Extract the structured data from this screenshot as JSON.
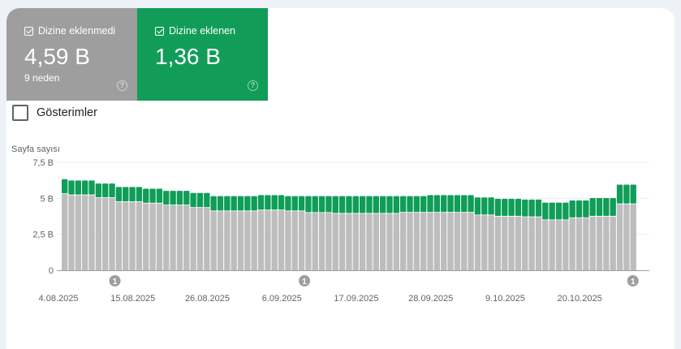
{
  "tiles": [
    {
      "label": "Dizine eklenmedi",
      "value": "4,59 B",
      "sub": "9 neden",
      "help": "?"
    },
    {
      "label": "Dizine eklenen",
      "value": "1,36 B",
      "help": "?"
    }
  ],
  "impressions_label": "Gösterimler",
  "colors": {
    "not_indexed": "#bdbdbd",
    "indexed": "#0f9d58",
    "tile_grey": "#9e9e9e",
    "tile_green": "#119d58"
  },
  "chart_data": {
    "type": "bar",
    "stacked": true,
    "ylabel": "Sayfa sayısı",
    "ylim": [
      0,
      7.5
    ],
    "y_ticks": [
      {
        "value": 0,
        "label": "0"
      },
      {
        "value": 2.5,
        "label": "2,5 B"
      },
      {
        "value": 5,
        "label": "5 B"
      },
      {
        "value": 7.5,
        "label": "7,5 B"
      }
    ],
    "x_tick_labels": [
      {
        "index": 0,
        "label": "4.08.2025"
      },
      {
        "index": 11,
        "label": "15.08.2025"
      },
      {
        "index": 22,
        "label": "26.08.2025"
      },
      {
        "index": 33,
        "label": "6.09.2025"
      },
      {
        "index": 44,
        "label": "17.09.2025"
      },
      {
        "index": 55,
        "label": "28.09.2025"
      },
      {
        "index": 66,
        "label": "9.10.2025"
      },
      {
        "index": 77,
        "label": "20.10.2025"
      }
    ],
    "annotations": [
      {
        "index": 7,
        "label": "1"
      },
      {
        "index": 35,
        "label": "1"
      },
      {
        "index": 84,
        "label": "1"
      }
    ],
    "series": [
      {
        "name": "Dizine eklenmedi",
        "values": [
          5.3,
          5.21,
          5.21,
          5.21,
          5.21,
          5.02,
          5.02,
          5.02,
          4.74,
          4.74,
          4.74,
          4.74,
          4.64,
          4.64,
          4.64,
          4.51,
          4.51,
          4.51,
          4.51,
          4.34,
          4.34,
          4.34,
          4.1,
          4.1,
          4.1,
          4.1,
          4.1,
          4.1,
          4.1,
          4.16,
          4.16,
          4.16,
          4.16,
          4.1,
          4.1,
          4.1,
          3.99,
          3.99,
          3.99,
          3.99,
          3.93,
          3.93,
          3.93,
          3.93,
          3.93,
          3.93,
          3.93,
          3.93,
          3.93,
          3.93,
          4.0,
          4.0,
          4.0,
          4.0,
          4.0,
          4.0,
          4.0,
          4.0,
          4.0,
          4.0,
          4.0,
          3.82,
          3.82,
          3.82,
          3.73,
          3.73,
          3.73,
          3.73,
          3.69,
          3.69,
          3.69,
          3.48,
          3.48,
          3.48,
          3.48,
          3.63,
          3.63,
          3.63,
          3.73,
          3.73,
          3.73,
          3.73,
          4.59,
          4.59,
          4.59
        ]
      },
      {
        "name": "Dizine eklenen",
        "values": [
          1.03,
          1.03,
          1.03,
          1.03,
          1.03,
          1.01,
          1.01,
          1.01,
          1.05,
          1.05,
          1.05,
          1.05,
          1.03,
          1.03,
          1.03,
          1.01,
          1.01,
          1.01,
          1.01,
          1.03,
          1.03,
          1.03,
          1.05,
          1.05,
          1.05,
          1.05,
          1.05,
          1.05,
          1.05,
          1.06,
          1.06,
          1.06,
          1.06,
          1.05,
          1.05,
          1.05,
          1.16,
          1.16,
          1.16,
          1.16,
          1.22,
          1.22,
          1.22,
          1.22,
          1.22,
          1.22,
          1.22,
          1.22,
          1.22,
          1.22,
          1.15,
          1.15,
          1.15,
          1.15,
          1.22,
          1.22,
          1.22,
          1.22,
          1.22,
          1.22,
          1.22,
          1.24,
          1.24,
          1.24,
          1.23,
          1.23,
          1.23,
          1.23,
          1.22,
          1.22,
          1.22,
          1.22,
          1.22,
          1.22,
          1.22,
          1.22,
          1.22,
          1.22,
          1.29,
          1.29,
          1.29,
          1.29,
          1.36,
          1.36,
          1.36
        ]
      }
    ]
  }
}
